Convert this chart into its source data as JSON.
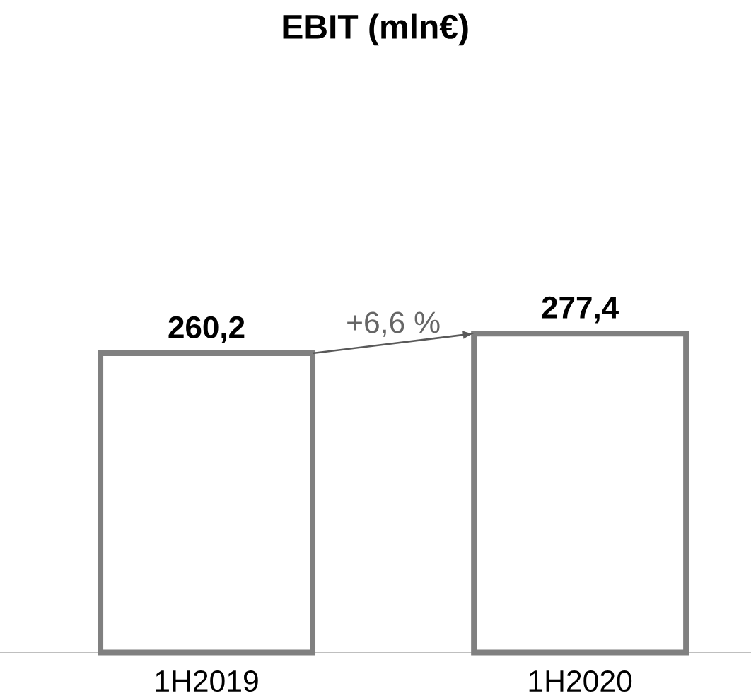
{
  "chart_data": {
    "type": "bar",
    "title": "EBIT (mln€)",
    "categories": [
      "1H2019",
      "1H2020"
    ],
    "values": [
      260.2,
      277.4
    ],
    "color": "#808080",
    "value_labels": [
      "260,2",
      "277,4"
    ],
    "annotations": [
      "+6,6 %"
    ]
  }
}
